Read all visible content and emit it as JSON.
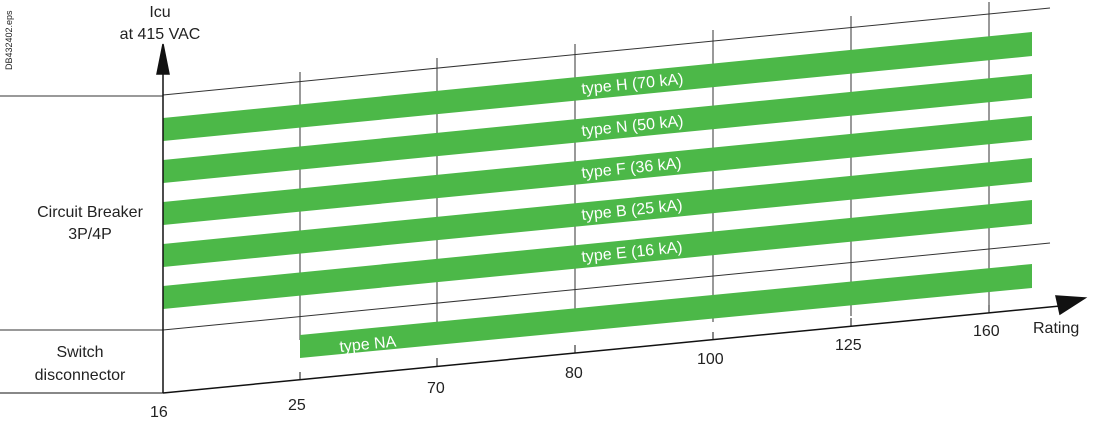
{
  "doc_id": "DB432402.eps",
  "y_axis_title": [
    "Icu",
    "at 415 VAC"
  ],
  "x_axis_title": "Rating",
  "categories": {
    "circuit_breaker": [
      "Circuit Breaker",
      "3P/4P"
    ],
    "switch_disconnector": [
      "Switch",
      "disconnector"
    ]
  },
  "ratings": [
    "16",
    "25",
    "70",
    "80",
    "100",
    "125",
    "160"
  ],
  "bands": [
    {
      "label": "type H (70 kA)"
    },
    {
      "label": "type N (50 kA)"
    },
    {
      "label": "type F (36 kA)"
    },
    {
      "label": "type B (25 kA)"
    },
    {
      "label": "type E (16 kA)"
    },
    {
      "label": "type NA"
    }
  ],
  "colors": {
    "band": "#4cb848",
    "line": "#333333",
    "text": "#222222"
  }
}
